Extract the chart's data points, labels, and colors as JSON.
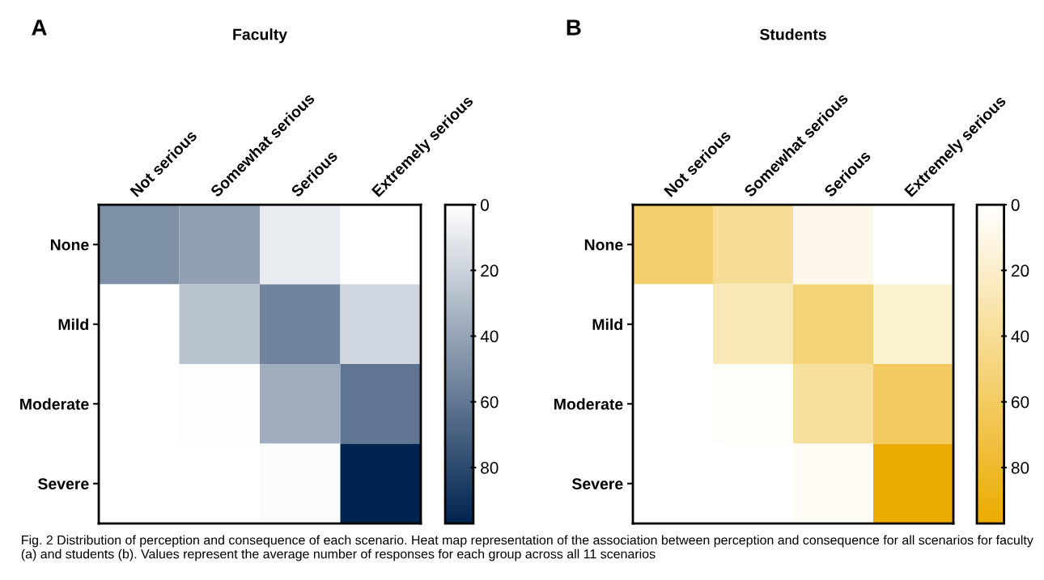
{
  "chart_data": [
    {
      "type": "heatmap",
      "title": "Faculty",
      "annotations": [
        "A"
      ],
      "categories": [
        "Not serious",
        "Somewhat serious",
        "Serious",
        "Extremely serious"
      ],
      "y_categories": [
        "None",
        "Mild",
        "Moderate",
        "Severe"
      ],
      "cells": [
        [
          49,
          42,
          9,
          0
        ],
        [
          0,
          27,
          54,
          18
        ],
        [
          0,
          1,
          36,
          61
        ],
        [
          0,
          0,
          2,
          97
        ]
      ],
      "colors": [
        "#ffffff",
        "#00234f"
      ],
      "clim": [
        0,
        97
      ],
      "cticks": [
        0,
        20,
        40,
        60,
        80
      ]
    },
    {
      "type": "heatmap",
      "title": "Students",
      "annotations": [
        "B",
        "Fig. 2 Distribution of perception and consequence of each scenario. Heat map representation of the association between perception and consequence for all scenarios for faculty (a) and students (b). Values represent the average number of responses for each group across all 11 scenarios"
      ],
      "categories": [
        "Not serious",
        "Somewhat serious",
        "Serious",
        "Extremely serious"
      ],
      "y_categories": [
        "None",
        "Mild",
        "Moderate",
        "Severe"
      ],
      "cells": [
        [
          55,
          40,
          8,
          0
        ],
        [
          0,
          28,
          51,
          18
        ],
        [
          0,
          2,
          37,
          61
        ],
        [
          0,
          0,
          4,
          97
        ]
      ],
      "colors": [
        "#ffffff",
        "#ebab00"
      ],
      "clim": [
        0,
        97
      ],
      "cticks": [
        0,
        20,
        40,
        60,
        80
      ]
    }
  ]
}
